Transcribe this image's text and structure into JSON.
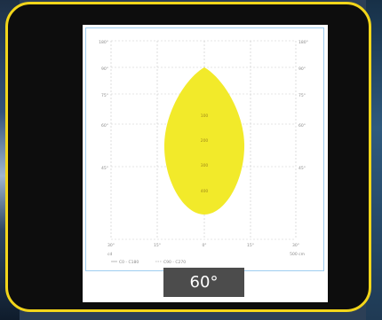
{
  "beam": {
    "angle_label": "60°",
    "shape_color": "#f2ea2a",
    "frame_color": "#f2d51a"
  },
  "chart_data": {
    "type": "polar-beam",
    "left_labels": [
      "180°",
      "90°",
      "75°",
      "60°",
      "45°"
    ],
    "right_labels": [
      "180°",
      "90°",
      "75°",
      "60°",
      "45°"
    ],
    "bottom_labels": [
      "30°",
      "15°",
      "0°",
      "15°",
      "30°"
    ],
    "center_values": [
      "100",
      "200",
      "300",
      "400"
    ],
    "corner_left": "cd",
    "corner_right": "500 cm",
    "legend": [
      "C0 - C180",
      "C90 - C270"
    ]
  }
}
